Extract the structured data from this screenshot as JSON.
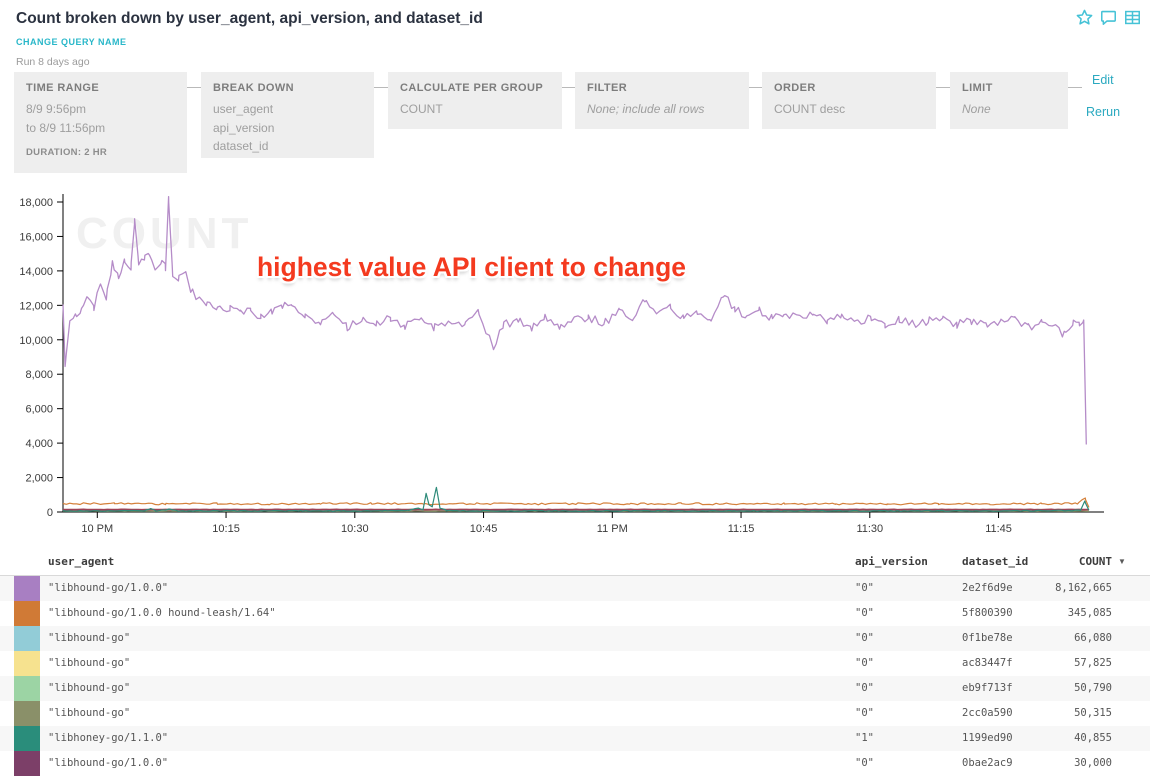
{
  "header": {
    "title": "Count broken down by user_agent, api_version, and dataset_id",
    "change_query_name": "CHANGE QUERY NAME",
    "run_ago": "Run 8 days ago",
    "edit_label": "Edit",
    "rerun_label": "Rerun",
    "accent_teal": "#29b7c9"
  },
  "query_builder": {
    "boxes": [
      {
        "label": "TIME RANGE",
        "lines": [
          "8/9 9:56pm",
          "to 8/9 11:56pm"
        ],
        "footnote": "DURATION: 2 HR"
      },
      {
        "label": "BREAK DOWN",
        "lines": [
          "user_agent",
          "api_version",
          "dataset_id"
        ]
      },
      {
        "label": "CALCULATE PER GROUP",
        "lines": [
          "COUNT"
        ]
      },
      {
        "label": "FILTER",
        "lines": [
          "None; include all rows"
        ]
      },
      {
        "label": "ORDER",
        "lines": [
          "COUNT desc"
        ]
      },
      {
        "label": "LIMIT",
        "lines": [
          "None"
        ]
      }
    ]
  },
  "annotation": {
    "text": "highest value API client to change",
    "color": "#f43a1f"
  },
  "chart_data": {
    "type": "line",
    "watermark": "COUNT",
    "ylim": [
      0,
      18000
    ],
    "y_ticks": [
      {
        "v": 0,
        "label": "0"
      },
      {
        "v": 2000,
        "label": "2,000"
      },
      {
        "v": 4000,
        "label": "4,000"
      },
      {
        "v": 6000,
        "label": "6,000"
      },
      {
        "v": 8000,
        "label": "8,000"
      },
      {
        "v": 10000,
        "label": "10,000"
      },
      {
        "v": 12000,
        "label": "12,000"
      },
      {
        "v": 14000,
        "label": "14,000"
      },
      {
        "v": 16000,
        "label": "16,000"
      },
      {
        "v": 18000,
        "label": "18,000"
      }
    ],
    "x_ticks": [
      {
        "t": 0.0333,
        "label": "10 PM"
      },
      {
        "t": 0.1583,
        "label": "10:15"
      },
      {
        "t": 0.2833,
        "label": "10:30"
      },
      {
        "t": 0.4083,
        "label": "10:45"
      },
      {
        "t": 0.5333,
        "label": "11 PM"
      },
      {
        "t": 0.6583,
        "label": "11:15"
      },
      {
        "t": 0.7833,
        "label": "11:30"
      },
      {
        "t": 0.9083,
        "label": "11:45"
      }
    ],
    "time_range": "8/9 9:56pm to 8/9 11:56pm",
    "series": [
      {
        "name": "libhound-go 0f1be78e",
        "color": "#92ccd7",
        "width": 1.1,
        "noise": 28,
        "seed": 11,
        "keypoints": [
          [
            0,
            110
          ],
          [
            0.996,
            110
          ]
        ]
      },
      {
        "name": "libhound-go ac83447f",
        "color": "#f0dd8a",
        "width": 1,
        "noise": 14,
        "seed": 12,
        "keypoints": [
          [
            0,
            70
          ],
          [
            0.996,
            70
          ]
        ]
      },
      {
        "name": "libhound-go eb9f713f",
        "color": "#9cd4a4",
        "width": 1,
        "noise": 12,
        "seed": 13,
        "keypoints": [
          [
            0,
            55
          ],
          [
            0.996,
            55
          ]
        ]
      },
      {
        "name": "libhound-go 2cc0a590",
        "color": "#8a9069",
        "width": 1,
        "noise": 10,
        "seed": 14,
        "keypoints": [
          [
            0,
            45
          ],
          [
            0.996,
            45
          ]
        ]
      },
      {
        "name": "libhound-go/1.0.0 0bae2ac9",
        "color": "#9c4257",
        "width": 1.8,
        "noise": 10,
        "seed": 15,
        "keypoints": [
          [
            0,
            140
          ],
          [
            0.996,
            140
          ]
        ]
      },
      {
        "name": "libhound-go/1.0.0 hound-leash/1.64 5f800390",
        "color": "#d4803a",
        "width": 1.2,
        "noise": 52,
        "seed": 16,
        "keypoints": [
          [
            0,
            480
          ],
          [
            0.05,
            500
          ],
          [
            0.1,
            465
          ],
          [
            0.15,
            490
          ],
          [
            0.2,
            455
          ],
          [
            0.25,
            480
          ],
          [
            0.3,
            495
          ],
          [
            0.35,
            470
          ],
          [
            0.4,
            488
          ],
          [
            0.45,
            458
          ],
          [
            0.5,
            478
          ],
          [
            0.55,
            468
          ],
          [
            0.6,
            488
          ],
          [
            0.65,
            462
          ],
          [
            0.7,
            480
          ],
          [
            0.75,
            468
          ],
          [
            0.8,
            458
          ],
          [
            0.85,
            478
          ],
          [
            0.9,
            468
          ],
          [
            0.95,
            478
          ],
          [
            0.985,
            495
          ],
          [
            0.9925,
            800
          ],
          [
            0.996,
            280
          ]
        ]
      },
      {
        "name": "libhoney-go/1.1.0 1199ed90",
        "color": "#2e8b7a",
        "width": 1.2,
        "noise": 28,
        "seed": 17,
        "keypoints": [
          [
            0,
            70
          ],
          [
            0.04,
            60
          ],
          [
            0.08,
            90
          ],
          [
            0.085,
            200
          ],
          [
            0.09,
            70
          ],
          [
            0.105,
            160
          ],
          [
            0.112,
            60
          ],
          [
            0.15,
            70
          ],
          [
            0.19,
            60
          ],
          [
            0.23,
            80
          ],
          [
            0.27,
            60
          ],
          [
            0.31,
            70
          ],
          [
            0.335,
            90
          ],
          [
            0.345,
            250
          ],
          [
            0.3495,
            120
          ],
          [
            0.3525,
            1080
          ],
          [
            0.3555,
            420
          ],
          [
            0.3585,
            320
          ],
          [
            0.3625,
            1420
          ],
          [
            0.366,
            240
          ],
          [
            0.372,
            90
          ],
          [
            0.4,
            60
          ],
          [
            0.45,
            70
          ],
          [
            0.5,
            60
          ],
          [
            0.55,
            75
          ],
          [
            0.6,
            60
          ],
          [
            0.65,
            70
          ],
          [
            0.7,
            60
          ],
          [
            0.75,
            75
          ],
          [
            0.8,
            60
          ],
          [
            0.85,
            70
          ],
          [
            0.9,
            60
          ],
          [
            0.95,
            70
          ],
          [
            0.988,
            90
          ],
          [
            0.992,
            620
          ],
          [
            0.996,
            90
          ]
        ]
      },
      {
        "name": "libhound-go/1.0.0 2e2f6d9e",
        "color": "#b58cc8",
        "width": 1.3,
        "noise": 240,
        "min": 200,
        "seed": 18,
        "keypoints": [
          [
            0,
            12100
          ],
          [
            0.002,
            8400
          ],
          [
            0.006,
            10900
          ],
          [
            0.012,
            11400
          ],
          [
            0.018,
            11800
          ],
          [
            0.024,
            12600
          ],
          [
            0.03,
            11900
          ],
          [
            0.036,
            13100
          ],
          [
            0.042,
            12500
          ],
          [
            0.048,
            14400
          ],
          [
            0.054,
            13700
          ],
          [
            0.06,
            14600
          ],
          [
            0.066,
            14100
          ],
          [
            0.0695,
            16900
          ],
          [
            0.0735,
            14300
          ],
          [
            0.079,
            14700
          ],
          [
            0.084,
            15100
          ],
          [
            0.089,
            14000
          ],
          [
            0.095,
            14500
          ],
          [
            0.0995,
            14200
          ],
          [
            0.1025,
            18100
          ],
          [
            0.1065,
            13800
          ],
          [
            0.112,
            13600
          ],
          [
            0.118,
            14100
          ],
          [
            0.124,
            12900
          ],
          [
            0.131,
            12300
          ],
          [
            0.14,
            12000
          ],
          [
            0.15,
            11700
          ],
          [
            0.162,
            11900
          ],
          [
            0.172,
            11500
          ],
          [
            0.182,
            11800
          ],
          [
            0.192,
            11300
          ],
          [
            0.203,
            11700
          ],
          [
            0.213,
            11900
          ],
          [
            0.222,
            12200
          ],
          [
            0.235,
            11400
          ],
          [
            0.25,
            11000
          ],
          [
            0.263,
            11400
          ],
          [
            0.276,
            10700
          ],
          [
            0.29,
            11200
          ],
          [
            0.304,
            10900
          ],
          [
            0.318,
            11300
          ],
          [
            0.332,
            10800
          ],
          [
            0.346,
            11100
          ],
          [
            0.36,
            10700
          ],
          [
            0.375,
            11000
          ],
          [
            0.39,
            10800
          ],
          [
            0.403,
            11600
          ],
          [
            0.418,
            9600
          ],
          [
            0.428,
            10900
          ],
          [
            0.442,
            11100
          ],
          [
            0.455,
            10700
          ],
          [
            0.468,
            11400
          ],
          [
            0.482,
            10800
          ],
          [
            0.496,
            11100
          ],
          [
            0.51,
            11300
          ],
          [
            0.525,
            11000
          ],
          [
            0.54,
            11600
          ],
          [
            0.553,
            11200
          ],
          [
            0.565,
            12300
          ],
          [
            0.578,
            11500
          ],
          [
            0.59,
            11900
          ],
          [
            0.602,
            11300
          ],
          [
            0.615,
            11700
          ],
          [
            0.628,
            11200
          ],
          [
            0.641,
            12600
          ],
          [
            0.652,
            11800
          ],
          [
            0.664,
            11400
          ],
          [
            0.676,
            11700
          ],
          [
            0.688,
            11300
          ],
          [
            0.7,
            11600
          ],
          [
            0.714,
            11200
          ],
          [
            0.728,
            11500
          ],
          [
            0.742,
            11100
          ],
          [
            0.756,
            11400
          ],
          [
            0.77,
            11000
          ],
          [
            0.784,
            11300
          ],
          [
            0.798,
            10900
          ],
          [
            0.812,
            11200
          ],
          [
            0.826,
            10900
          ],
          [
            0.84,
            11100
          ],
          [
            0.854,
            11300
          ],
          [
            0.868,
            10900
          ],
          [
            0.882,
            11100
          ],
          [
            0.896,
            10800
          ],
          [
            0.91,
            11000
          ],
          [
            0.924,
            11200
          ],
          [
            0.937,
            10700
          ],
          [
            0.95,
            11000
          ],
          [
            0.962,
            10900
          ],
          [
            0.972,
            10300
          ],
          [
            0.981,
            11100
          ],
          [
            0.9865,
            10800
          ],
          [
            0.991,
            11100
          ],
          [
            0.9935,
            3700
          ]
        ]
      }
    ]
  },
  "table": {
    "columns": [
      "user_agent",
      "api_version",
      "dataset_id",
      "COUNT"
    ],
    "sort_icon": "▼",
    "rows": [
      {
        "color": "#a87fc2",
        "user_agent": "\"libhound-go/1.0.0\"",
        "api_version": "\"0\"",
        "dataset_id": "2e2f6d9e",
        "count": "8,162,665"
      },
      {
        "color": "#d07a36",
        "user_agent": "\"libhound-go/1.0.0 hound-leash/1.64\"",
        "api_version": "\"0\"",
        "dataset_id": "5f800390",
        "count": "345,085"
      },
      {
        "color": "#92ccd7",
        "user_agent": "\"libhound-go\"",
        "api_version": "\"0\"",
        "dataset_id": "0f1be78e",
        "count": "66,080"
      },
      {
        "color": "#f6e28f",
        "user_agent": "\"libhound-go\"",
        "api_version": "\"0\"",
        "dataset_id": "ac83447f",
        "count": "57,825"
      },
      {
        "color": "#9cd4a4",
        "user_agent": "\"libhound-go\"",
        "api_version": "\"0\"",
        "dataset_id": "eb9f713f",
        "count": "50,790"
      },
      {
        "color": "#8a9069",
        "user_agent": "\"libhound-go\"",
        "api_version": "\"0\"",
        "dataset_id": "2cc0a590",
        "count": "50,315"
      },
      {
        "color": "#2a8d7b",
        "user_agent": "\"libhoney-go/1.1.0\"",
        "api_version": "\"1\"",
        "dataset_id": "1199ed90",
        "count": "40,855"
      },
      {
        "color": "#7c3f68",
        "user_agent": "\"libhound-go/1.0.0\"",
        "api_version": "\"0\"",
        "dataset_id": "0bae2ac9",
        "count": "30,000"
      }
    ]
  }
}
